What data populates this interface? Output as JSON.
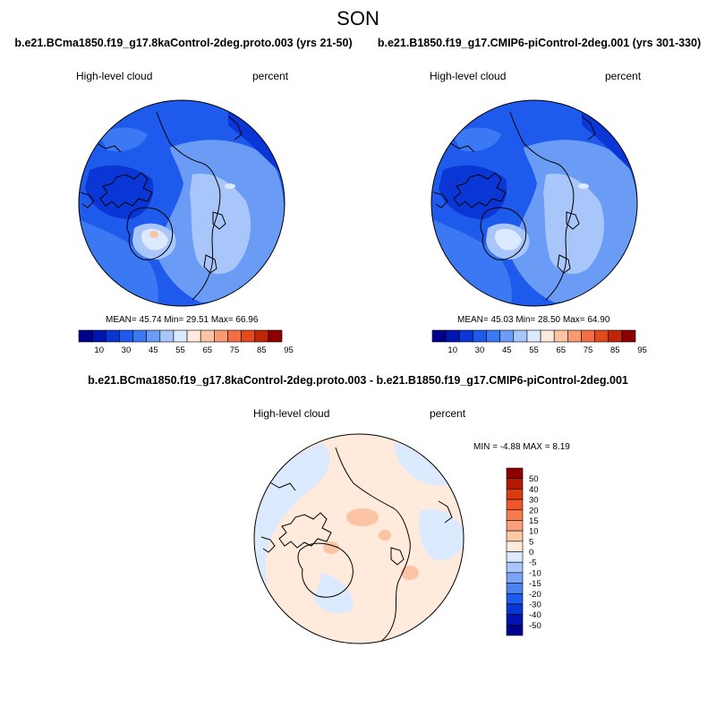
{
  "main_title": "SON",
  "panels": [
    {
      "title": "b.e21.BCma1850.f19_g17.8kaControl-2deg.proto.003 (yrs 21-50)",
      "left_label": "High-level cloud",
      "right_label": "percent",
      "stats": "MEAN=  45.74   Min=  29.51   Max=  66.96"
    },
    {
      "title": "b.e21.B1850.f19_g17.CMIP6-piControl-2deg.001 (yrs 301-330)",
      "left_label": "High-level cloud",
      "right_label": "percent",
      "stats": "MEAN=  45.03   Min=  28.50   Max=  64.90"
    },
    {
      "title": "b.e21.BCma1850.f19_g17.8kaControl-2deg.proto.003 - b.e21.B1850.f19_g17.CMIP6-piControl-2deg.001",
      "left_label": "High-level cloud",
      "right_label": "percent",
      "stats": "MIN =  -4.88 MAX =   8.19"
    }
  ],
  "colorbar_top": {
    "labels": [
      "10",
      "30",
      "45",
      "55",
      "65",
      "75",
      "85",
      "95"
    ],
    "colors": [
      "#00008c",
      "#0015b0",
      "#0a36d6",
      "#1e5aec",
      "#3a78f4",
      "#6a9cf6",
      "#a8c6fa",
      "#dceaff",
      "#ffeadc",
      "#fcc3a5",
      "#f99a72",
      "#f36e44",
      "#e24a1c",
      "#bf2608",
      "#8c0000"
    ]
  },
  "colorbar_diff": {
    "labels": [
      "50",
      "40",
      "30",
      "20",
      "15",
      "10",
      "5",
      "0",
      "-5",
      "-10",
      "-15",
      "-20",
      "-30",
      "-40",
      "-50"
    ],
    "colors": [
      "#8c0000",
      "#b41a02",
      "#d93a0e",
      "#f0562a",
      "#f77a4c",
      "#fba07a",
      "#fdc8a8",
      "#ffeadc",
      "#dceaff",
      "#a8c6fa",
      "#7aa4f6",
      "#4a82f0",
      "#1e5aec",
      "#0a36d6",
      "#0015b0",
      "#00008c"
    ]
  }
}
